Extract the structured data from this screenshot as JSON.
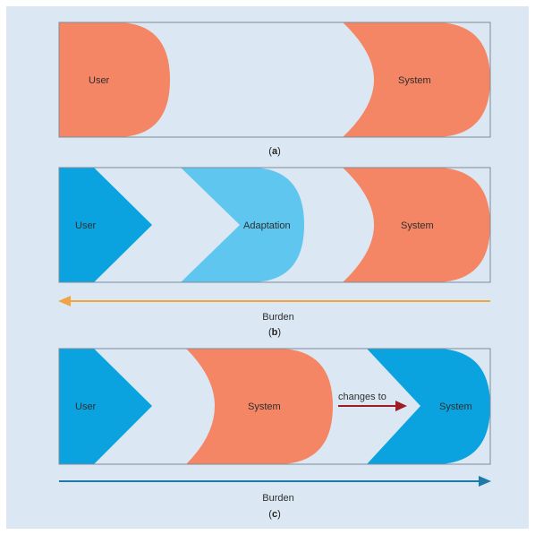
{
  "colors": {
    "background": "#dbe8f3",
    "panel_border": "#7f8c97",
    "user_blue": "#0aa3df",
    "adaptation_blue": "#5ec6ef",
    "system_orange": "#f48665",
    "system_blue": "#0aa3df",
    "burden_arrow_b": "#f1a542",
    "burden_arrow_c": "#1e7aa8",
    "changes_arrow": "#9e1c24"
  },
  "panels": {
    "a": {
      "caption_open": "(",
      "caption_letter": "a",
      "caption_close": ")",
      "user_label": "User",
      "system_label": "System"
    },
    "b": {
      "caption_open": "(",
      "caption_letter": "b",
      "caption_close": ")",
      "user_label": "User",
      "adaptation_label": "Adaptation",
      "system_label": "System",
      "burden_label": "Burden",
      "burden_direction": "left"
    },
    "c": {
      "caption_open": "(",
      "caption_letter": "c",
      "caption_close": ")",
      "user_label": "User",
      "system_label": "System",
      "changes_label": "changes to",
      "system2_label": "System",
      "burden_label": "Burden",
      "burden_direction": "right"
    }
  }
}
